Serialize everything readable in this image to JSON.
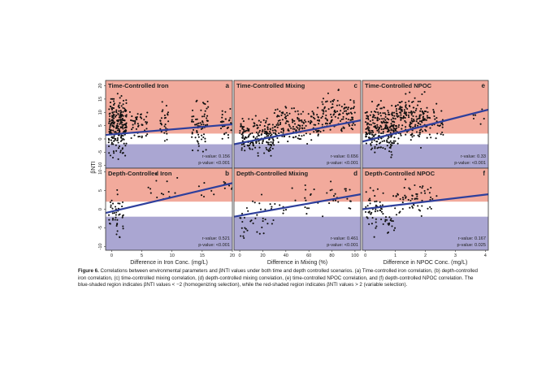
{
  "figure": {
    "ylabel": "βNTI",
    "caption_label": "Figure 6.",
    "caption_text": "Correlations between environmental parameters and βNTI values under both time and depth controlled scenarios. (a) Time-controlled iron correlation, (b) depth-controlled iron correlation, (c) time-controlled mixing correlation, (d) depth-controlled mixing correlation, (e) time-controlled NPOC correlation, and (f) depth-controlled NPOC correlation. The blue-shaded region indicates βNTI values < −2 (homogenizing selection), while the red-shaded region indicates βNTI values > 2 (variable selection).",
    "colors": {
      "red_region": "#f2aa9c",
      "blue_region": "#aaa6d2",
      "white_band": "#ffffff",
      "points": "#111111",
      "fit_line": "#2e3f9c"
    }
  },
  "chart_data": [
    {
      "type": "scatter",
      "panel": "a",
      "title": "Time-Controlled Iron",
      "xlabel": "",
      "ylabel": "βNTI",
      "xlim": [
        -1,
        20
      ],
      "ylim": [
        -11,
        22
      ],
      "xticks": [],
      "yticks": [
        "-10",
        "-5",
        "0",
        "5",
        "10",
        "15",
        "20"
      ],
      "r_text": "r-value: 0.156",
      "p_text": "p-value: <0.001",
      "fit": {
        "x": [
          -1,
          20
        ],
        "y": [
          1.5,
          5.5
        ]
      },
      "groups": [
        {
          "x": [
            -0.5,
            2.5
          ],
          "y": [
            -10,
            20
          ],
          "n": 240
        },
        {
          "x": [
            3,
            6
          ],
          "y": [
            -3,
            14
          ],
          "n": 45
        },
        {
          "x": [
            8,
            9.5
          ],
          "y": [
            -2,
            16
          ],
          "n": 30
        },
        {
          "x": [
            13,
            16
          ],
          "y": [
            -8,
            19
          ],
          "n": 70
        },
        {
          "x": [
            18,
            20
          ],
          "y": [
            -2,
            13
          ],
          "n": 30
        }
      ]
    },
    {
      "type": "scatter",
      "panel": "b",
      "title": "Depth-Controlled Iron",
      "xlabel": "Difference in Iron Conc. (mg/L)",
      "ylabel": "",
      "xlim": [
        -1,
        20
      ],
      "ylim": [
        -11,
        11
      ],
      "xticks": [
        "0",
        "5",
        "10",
        "15",
        "20"
      ],
      "yticks": [
        "-10",
        "-5",
        "0",
        "5",
        "10"
      ],
      "r_text": "r-value: 0.521",
      "p_text": "p-value: <0.001",
      "fit": {
        "x": [
          -1,
          20
        ],
        "y": [
          -1,
          7
        ]
      },
      "groups": [
        {
          "x": [
            -0.5,
            2
          ],
          "y": [
            -10,
            7
          ],
          "n": 45
        },
        {
          "x": [
            6,
            11
          ],
          "y": [
            -1,
            11
          ],
          "n": 14
        },
        {
          "x": [
            14,
            17
          ],
          "y": [
            2,
            8
          ],
          "n": 6
        },
        {
          "x": [
            18.5,
            20
          ],
          "y": [
            4,
            9
          ],
          "n": 8
        }
      ]
    },
    {
      "type": "scatter",
      "panel": "c",
      "title": "Time-Controlled Mixing",
      "xlabel": "",
      "ylabel": "",
      "xlim": [
        -5,
        105
      ],
      "ylim": [
        -11,
        22
      ],
      "xticks": [],
      "yticks": [],
      "r_text": "r-value: 0.656",
      "p_text": "p-value: <0.001",
      "fit": {
        "x": [
          -5,
          105
        ],
        "y": [
          -2,
          7
        ]
      },
      "groups": [
        {
          "x": [
            0,
            30
          ],
          "y": [
            -9,
            10
          ],
          "n": 180
        },
        {
          "x": [
            30,
            70
          ],
          "y": [
            -5,
            15
          ],
          "n": 160
        },
        {
          "x": [
            70,
            100
          ],
          "y": [
            -2,
            20
          ],
          "n": 120
        }
      ]
    },
    {
      "type": "scatter",
      "panel": "d",
      "title": "Depth-Controlled Mixing",
      "xlabel": "Difference in Mixing (%)",
      "ylabel": "",
      "xlim": [
        -5,
        105
      ],
      "ylim": [
        -11,
        11
      ],
      "xticks": [
        "0",
        "20",
        "40",
        "60",
        "80",
        "100"
      ],
      "yticks": [],
      "r_text": "r-value: 0.461",
      "p_text": "p-value: <0.001",
      "fit": {
        "x": [
          -5,
          105
        ],
        "y": [
          -2,
          4
        ]
      },
      "groups": [
        {
          "x": [
            0,
            30
          ],
          "y": [
            -10,
            6
          ],
          "n": 40
        },
        {
          "x": [
            30,
            75
          ],
          "y": [
            -5,
            8
          ],
          "n": 22
        },
        {
          "x": [
            75,
            100
          ],
          "y": [
            -2,
            9
          ],
          "n": 20
        }
      ]
    },
    {
      "type": "scatter",
      "panel": "e",
      "title": "Time-Controlled NPOC",
      "xlabel": "",
      "ylabel": "",
      "xlim": [
        -0.1,
        4.1
      ],
      "ylim": [
        -11,
        22
      ],
      "xticks": [],
      "yticks": [],
      "r_text": "r-value: 0.33",
      "p_text": "p-value: <0.001",
      "fit": {
        "x": [
          -0.1,
          4.1
        ],
        "y": [
          -1,
          11
        ]
      },
      "groups": [
        {
          "x": [
            0,
            1
          ],
          "y": [
            -10,
            18
          ],
          "n": 250
        },
        {
          "x": [
            1,
            2
          ],
          "y": [
            -5,
            20
          ],
          "n": 180
        },
        {
          "x": [
            2,
            2.6
          ],
          "y": [
            -2,
            15
          ],
          "n": 40
        },
        {
          "x": [
            3.6,
            4
          ],
          "y": [
            4,
            12
          ],
          "n": 6
        }
      ]
    },
    {
      "type": "scatter",
      "panel": "f",
      "title": "Depth-Controlled NPOC",
      "xlabel": "Difference in NPOC Conc. (mg/L)",
      "ylabel": "",
      "xlim": [
        -0.1,
        4.1
      ],
      "ylim": [
        -11,
        11
      ],
      "xticks": [
        "0",
        "1",
        "2",
        "3",
        "4"
      ],
      "yticks": [],
      "r_text": "r-value: 0.167",
      "p_text": "p-value: 0.025",
      "fit": {
        "x": [
          -0.1,
          4.1
        ],
        "y": [
          0,
          4
        ]
      },
      "groups": [
        {
          "x": [
            0,
            1
          ],
          "y": [
            -10,
            8
          ],
          "n": 70
        },
        {
          "x": [
            1,
            2
          ],
          "y": [
            -5,
            10
          ],
          "n": 50
        },
        {
          "x": [
            2,
            2.5
          ],
          "y": [
            -2,
            8
          ],
          "n": 10
        }
      ]
    }
  ]
}
